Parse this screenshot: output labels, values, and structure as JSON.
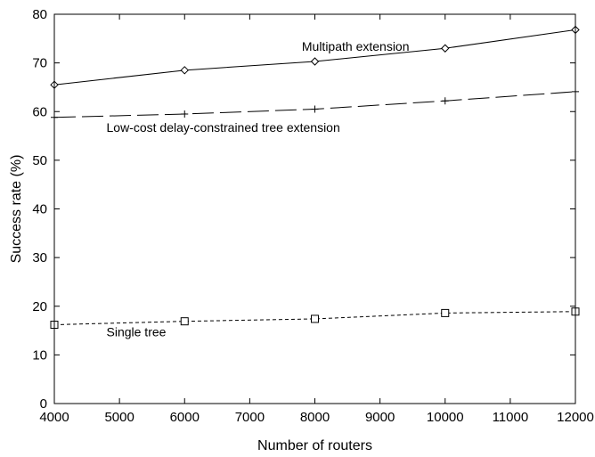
{
  "chart_data": {
    "type": "line",
    "title": "",
    "xlabel": "Number of routers",
    "ylabel": "Success rate (%)",
    "xlim": [
      4000,
      12000
    ],
    "ylim": [
      0,
      80
    ],
    "xticks": [
      4000,
      5000,
      6000,
      7000,
      8000,
      9000,
      10000,
      11000,
      12000
    ],
    "yticks": [
      0,
      10,
      20,
      30,
      40,
      50,
      60,
      70,
      80
    ],
    "grid": false,
    "legend": "none",
    "x": [
      4000,
      6000,
      8000,
      10000,
      12000
    ],
    "series": [
      {
        "key": "multipath",
        "values": [
          65.5,
          68.5,
          70.3,
          73.0,
          76.8
        ],
        "line_style": "solid",
        "marker": "diamond",
        "color": "#000000"
      },
      {
        "key": "low_cost",
        "values": [
          58.8,
          59.5,
          60.5,
          62.2,
          64.1
        ],
        "line_style": "long-dash",
        "marker": "plus",
        "color": "#000000"
      },
      {
        "key": "single_tree",
        "values": [
          16.2,
          16.9,
          17.4,
          18.6,
          18.9
        ],
        "line_style": "short-dash",
        "marker": "square",
        "color": "#000000"
      }
    ],
    "annotations": [
      {
        "key": "multipath",
        "text": "Multipath extension",
        "x": 7800,
        "y": 72.5
      },
      {
        "key": "low_cost",
        "text": "Low-cost delay-constrained tree extension",
        "x": 4800,
        "y": 55.8
      },
      {
        "key": "single_tree",
        "text": "Single tree",
        "x": 4800,
        "y": 13.8
      }
    ]
  }
}
